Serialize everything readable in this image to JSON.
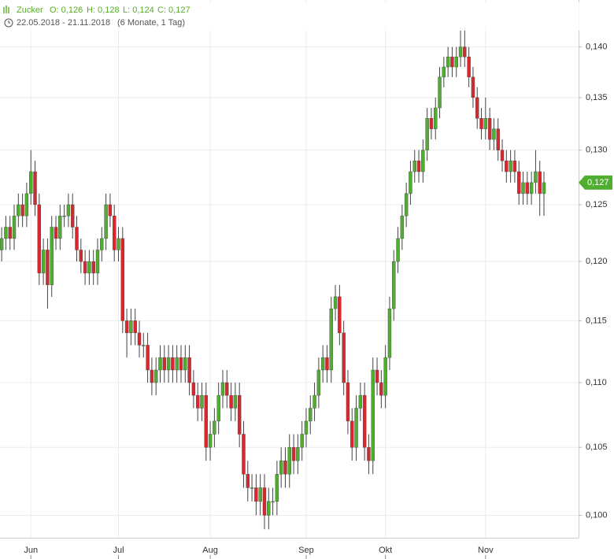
{
  "chart_data": {
    "type": "candlestick",
    "header": {
      "name": "Zucker",
      "open": "O: 0,126",
      "high": "H: 0,128",
      "low": "L: 0,124",
      "close": "C: 0,127"
    },
    "period": "22.05.2018 - 21.11.2018",
    "period_note": "(6 Monate, 1 Tag)",
    "log_scale": true,
    "grid": true,
    "up_color": "#4fae2f",
    "down_color": "#d9272e",
    "ylim": [
      0.0984,
      0.1448
    ],
    "yticks": [
      {
        "value": 0.1,
        "label": "0,100"
      },
      {
        "value": 0.105,
        "label": "0,105"
      },
      {
        "value": 0.11,
        "label": "0,110"
      },
      {
        "value": 0.115,
        "label": "0,115"
      },
      {
        "value": 0.12,
        "label": "0,120"
      },
      {
        "value": 0.125,
        "label": "0,125"
      },
      {
        "value": 0.13,
        "label": "0,130"
      },
      {
        "value": 0.135,
        "label": "0,135"
      },
      {
        "value": 0.14,
        "label": "0,140"
      }
    ],
    "xlim": [
      -0.4,
      138.3
    ],
    "xticks": [
      {
        "value": 7,
        "label": "Jun"
      },
      {
        "value": 28,
        "label": "Jul"
      },
      {
        "value": 50,
        "label": "Aug"
      },
      {
        "value": 73,
        "label": "Sep"
      },
      {
        "value": 92,
        "label": "Okt"
      },
      {
        "value": 116,
        "label": "Nov"
      }
    ],
    "last_price": {
      "value": 0.127,
      "label": "0,127"
    },
    "open": [
      0.121,
      0.122,
      0.123,
      0.122,
      0.124,
      0.125,
      0.124,
      0.126,
      0.128,
      0.125,
      0.119,
      0.121,
      0.118,
      0.123,
      0.122,
      0.124,
      0.124,
      0.125,
      0.123,
      0.121,
      0.12,
      0.119,
      0.12,
      0.119,
      0.121,
      0.122,
      0.125,
      0.124,
      0.121,
      0.122,
      0.115,
      0.114,
      0.115,
      0.114,
      0.113,
      0.113,
      0.111,
      0.11,
      0.111,
      0.112,
      0.111,
      0.112,
      0.111,
      0.112,
      0.111,
      0.112,
      0.11,
      0.109,
      0.108,
      0.109,
      0.105,
      0.106,
      0.107,
      0.109,
      0.11,
      0.109,
      0.108,
      0.109,
      0.106,
      0.103,
      0.102,
      0.102,
      0.101,
      0.102,
      0.1,
      0.101,
      0.101,
      0.103,
      0.104,
      0.103,
      0.105,
      0.104,
      0.105,
      0.106,
      0.107,
      0.108,
      0.109,
      0.111,
      0.112,
      0.111,
      0.116,
      0.117,
      0.114,
      0.11,
      0.107,
      0.105,
      0.108,
      0.109,
      0.105,
      0.104,
      0.111,
      0.11,
      0.109,
      0.112,
      0.116,
      0.12,
      0.122,
      0.124,
      0.126,
      0.128,
      0.129,
      0.128,
      0.13,
      0.133,
      0.132,
      0.134,
      0.137,
      0.138,
      0.139,
      0.138,
      0.139,
      0.14,
      0.139,
      0.137,
      0.135,
      0.133,
      0.132,
      0.133,
      0.131,
      0.132,
      0.13,
      0.129,
      0.128,
      0.129,
      0.128,
      0.126,
      0.127,
      0.126,
      0.127,
      0.128,
      0.126
    ],
    "high": [
      0.123,
      0.124,
      0.124,
      0.125,
      0.126,
      0.126,
      0.127,
      0.13,
      0.129,
      0.126,
      0.122,
      0.122,
      0.124,
      0.124,
      0.125,
      0.125,
      0.126,
      0.126,
      0.124,
      0.122,
      0.121,
      0.121,
      0.121,
      0.122,
      0.123,
      0.126,
      0.126,
      0.125,
      0.123,
      0.123,
      0.116,
      0.116,
      0.116,
      0.115,
      0.114,
      0.114,
      0.112,
      0.112,
      0.113,
      0.113,
      0.113,
      0.113,
      0.113,
      0.113,
      0.113,
      0.113,
      0.111,
      0.11,
      0.11,
      0.11,
      0.107,
      0.108,
      0.11,
      0.111,
      0.111,
      0.11,
      0.11,
      0.11,
      0.107,
      0.104,
      0.103,
      0.103,
      0.103,
      0.103,
      0.102,
      0.102,
      0.104,
      0.105,
      0.105,
      0.106,
      0.106,
      0.106,
      0.107,
      0.108,
      0.109,
      0.11,
      0.112,
      0.113,
      0.113,
      0.117,
      0.118,
      0.118,
      0.115,
      0.111,
      0.108,
      0.109,
      0.11,
      0.11,
      0.106,
      0.112,
      0.112,
      0.111,
      0.113,
      0.117,
      0.121,
      0.123,
      0.125,
      0.127,
      0.129,
      0.13,
      0.13,
      0.131,
      0.134,
      0.134,
      0.135,
      0.138,
      0.139,
      0.14,
      0.14,
      0.14,
      0.142,
      0.142,
      0.14,
      0.138,
      0.136,
      0.134,
      0.135,
      0.134,
      0.133,
      0.133,
      0.131,
      0.13,
      0.13,
      0.13,
      0.129,
      0.128,
      0.128,
      0.128,
      0.13,
      0.129,
      0.128
    ],
    "low": [
      0.12,
      0.121,
      0.121,
      0.121,
      0.123,
      0.123,
      0.123,
      0.125,
      0.124,
      0.118,
      0.118,
      0.116,
      0.117,
      0.121,
      0.121,
      0.123,
      0.123,
      0.122,
      0.12,
      0.119,
      0.118,
      0.118,
      0.118,
      0.118,
      0.12,
      0.121,
      0.123,
      0.12,
      0.12,
      0.114,
      0.112,
      0.113,
      0.113,
      0.112,
      0.112,
      0.11,
      0.109,
      0.109,
      0.11,
      0.11,
      0.11,
      0.11,
      0.11,
      0.11,
      0.11,
      0.109,
      0.108,
      0.107,
      0.107,
      0.104,
      0.104,
      0.105,
      0.106,
      0.108,
      0.108,
      0.107,
      0.107,
      0.105,
      0.102,
      0.101,
      0.101,
      0.1,
      0.1,
      0.099,
      0.099,
      0.1,
      0.1,
      0.102,
      0.102,
      0.102,
      0.103,
      0.103,
      0.104,
      0.105,
      0.106,
      0.107,
      0.108,
      0.11,
      0.11,
      0.11,
      0.115,
      0.113,
      0.109,
      0.106,
      0.104,
      0.104,
      0.107,
      0.104,
      0.103,
      0.103,
      0.109,
      0.108,
      0.108,
      0.111,
      0.115,
      0.119,
      0.121,
      0.123,
      0.125,
      0.127,
      0.127,
      0.127,
      0.129,
      0.131,
      0.131,
      0.133,
      0.136,
      0.137,
      0.137,
      0.137,
      0.138,
      0.138,
      0.136,
      0.134,
      0.132,
      0.131,
      0.131,
      0.13,
      0.13,
      0.129,
      0.128,
      0.127,
      0.127,
      0.127,
      0.125,
      0.125,
      0.125,
      0.125,
      0.126,
      0.124,
      0.124
    ],
    "close": [
      0.122,
      0.123,
      0.122,
      0.124,
      0.125,
      0.124,
      0.126,
      0.128,
      0.125,
      0.119,
      0.121,
      0.118,
      0.123,
      0.122,
      0.124,
      0.124,
      0.125,
      0.123,
      0.121,
      0.12,
      0.119,
      0.12,
      0.119,
      0.121,
      0.122,
      0.125,
      0.124,
      0.121,
      0.122,
      0.115,
      0.114,
      0.115,
      0.114,
      0.113,
      0.113,
      0.111,
      0.11,
      0.111,
      0.112,
      0.111,
      0.112,
      0.111,
      0.112,
      0.111,
      0.112,
      0.11,
      0.109,
      0.108,
      0.109,
      0.105,
      0.106,
      0.107,
      0.109,
      0.11,
      0.109,
      0.108,
      0.109,
      0.106,
      0.103,
      0.102,
      0.102,
      0.101,
      0.102,
      0.1,
      0.101,
      0.101,
      0.103,
      0.104,
      0.103,
      0.105,
      0.104,
      0.105,
      0.106,
      0.107,
      0.108,
      0.109,
      0.111,
      0.112,
      0.111,
      0.116,
      0.117,
      0.114,
      0.11,
      0.107,
      0.105,
      0.108,
      0.109,
      0.105,
      0.104,
      0.111,
      0.11,
      0.109,
      0.112,
      0.116,
      0.12,
      0.122,
      0.124,
      0.126,
      0.128,
      0.129,
      0.128,
      0.13,
      0.133,
      0.132,
      0.134,
      0.137,
      0.138,
      0.139,
      0.138,
      0.139,
      0.14,
      0.139,
      0.137,
      0.135,
      0.133,
      0.132,
      0.133,
      0.131,
      0.132,
      0.13,
      0.129,
      0.128,
      0.129,
      0.128,
      0.126,
      0.127,
      0.126,
      0.127,
      0.128,
      0.126,
      0.127
    ]
  }
}
